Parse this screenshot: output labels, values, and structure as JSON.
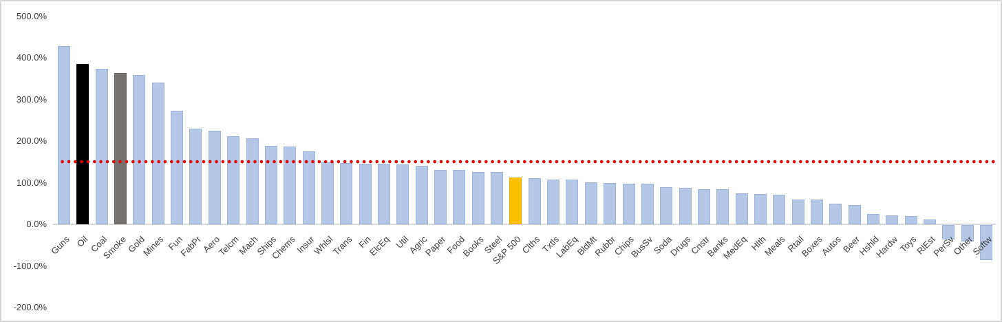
{
  "chart_data": {
    "type": "bar",
    "title": "",
    "xlabel": "",
    "ylabel": "",
    "unit": "%",
    "grid": "off",
    "legend": "none",
    "ylim": [
      -200,
      500
    ],
    "y_ticks": [
      "500.0%",
      "400.0%",
      "300.0%",
      "200.0%",
      "100.0%",
      "0.0%",
      "-100.0%",
      "-200.0%"
    ],
    "reference_line": {
      "value": 150,
      "style": "dotted",
      "color": "#E60000"
    },
    "categories": [
      "Guns",
      "Oil",
      "Coal",
      "Smoke",
      "Gold",
      "Mines",
      "Fun",
      "FabPr",
      "Aero",
      "Telcm",
      "Mach",
      "Ships",
      "Chems",
      "Insur",
      "Whlsl",
      "Trans",
      "Fin",
      "ElcEq",
      "Util",
      "Agric",
      "Paper",
      "Food",
      "Books",
      "Steel",
      "S&P 500",
      "Clths",
      "Txtls",
      "LabEq",
      "BldMt",
      "Rubbr",
      "Chips",
      "BusSv",
      "Soda",
      "Drugs",
      "Cnstr",
      "Banks",
      "MedEq",
      "Hlth",
      "Meals",
      "Rtail",
      "Boxes",
      "Autos",
      "Beer",
      "Hshld",
      "Hardw",
      "Toys",
      "RlEst",
      "PerSv",
      "Other",
      "Softw"
    ],
    "values": [
      428,
      385,
      373,
      364,
      358,
      340,
      272,
      230,
      224,
      212,
      206,
      188,
      187,
      175,
      148,
      147,
      146,
      146,
      143,
      141,
      131,
      131,
      126,
      125,
      112,
      111,
      108,
      107,
      101,
      99,
      98,
      97,
      89,
      88,
      85,
      84,
      74,
      72,
      71,
      60,
      59,
      50,
      47,
      25,
      22,
      20,
      12,
      -35,
      -40,
      -85
    ],
    "colors": {
      "default": {
        "fill": "#B4C7E7",
        "border": "#9DB4DC"
      },
      "Oil": {
        "fill": "#000000",
        "border": "#000000"
      },
      "Smoke": {
        "fill": "#767171",
        "border": "#6B6767"
      },
      "S&P 500": {
        "fill": "#FFC000",
        "border": "#E8AC00"
      }
    },
    "axis_text_color": "#404040",
    "axis_line_color": "#D9D9D9"
  }
}
